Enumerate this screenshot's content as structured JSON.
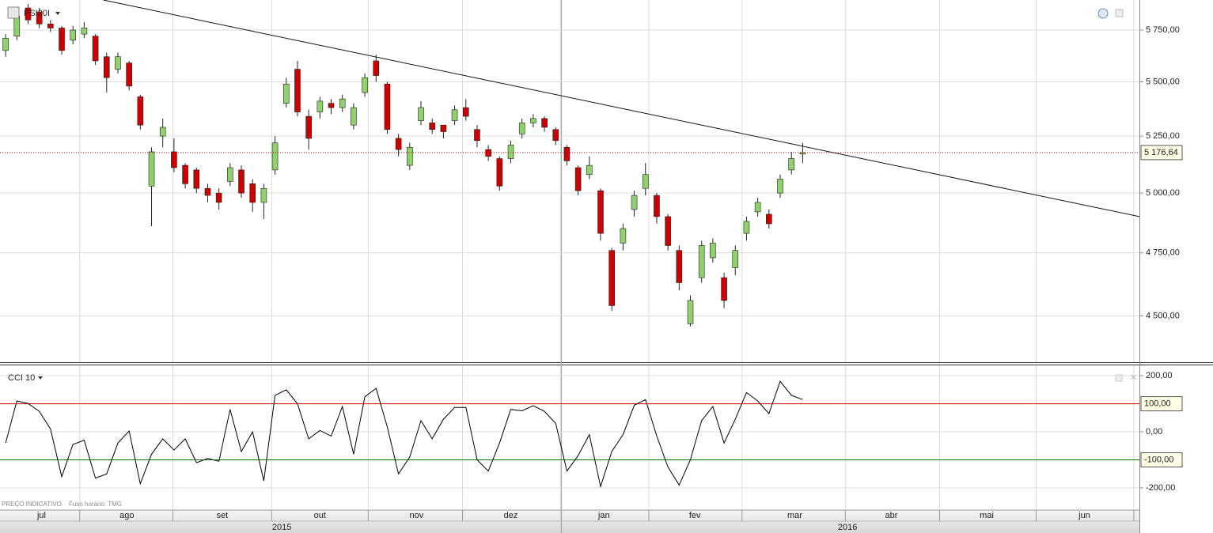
{
  "chart_data": [
    {
      "type": "candlestick",
      "title": "PSI20I",
      "categories": [
        null,
        null,
        null,
        null,
        null,
        null,
        null,
        null,
        null,
        null,
        null,
        null,
        null,
        null,
        null,
        null,
        null,
        null,
        null,
        null,
        null,
        null,
        null,
        null,
        null,
        null,
        null,
        null,
        null,
        null,
        null,
        null,
        null,
        null,
        null,
        null,
        null,
        null,
        null,
        null,
        null,
        null,
        null,
        null,
        null,
        null,
        null,
        null,
        null,
        null,
        null,
        null,
        null,
        null,
        null,
        null,
        null,
        null,
        null,
        null,
        null,
        null,
        null,
        null,
        null,
        null,
        null,
        null,
        null,
        null,
        null,
        null
      ],
      "open": [
        5650,
        5720,
        5860,
        5840,
        5780,
        5760,
        5700,
        5730,
        5720,
        5620,
        5560,
        5590,
        5430,
        5030,
        5250,
        5180,
        5120,
        5100,
        5020,
        5000,
        5050,
        5100,
        5040,
        4960,
        5100,
        5400,
        5560,
        5340,
        5360,
        5400,
        5380,
        5300,
        5450,
        5600,
        5490,
        5240,
        5120,
        5320,
        5310,
        5300,
        5320,
        5380,
        5280,
        5190,
        5150,
        5150,
        5260,
        5310,
        5330,
        5280,
        5200,
        5110,
        5080,
        5010,
        4760,
        4790,
        4930,
        5020,
        4990,
        4900,
        4760,
        4470,
        4650,
        4730,
        4650,
        4690,
        4830,
        4920,
        4910,
        5000,
        5100,
        5170
      ],
      "high": [
        5730,
        5850,
        5880,
        5860,
        5800,
        5770,
        5770,
        5790,
        5730,
        5640,
        5640,
        5600,
        5440,
        5200,
        5330,
        5240,
        5130,
        5110,
        5040,
        5020,
        5130,
        5120,
        5060,
        5040,
        5250,
        5520,
        5600,
        5370,
        5430,
        5420,
        5440,
        5400,
        5540,
        5630,
        5500,
        5260,
        5220,
        5410,
        5330,
        5300,
        5390,
        5420,
        5300,
        5210,
        5160,
        5230,
        5330,
        5350,
        5340,
        5290,
        5210,
        5120,
        5160,
        5020,
        4770,
        4870,
        5010,
        5130,
        5000,
        4910,
        4780,
        4580,
        4800,
        4810,
        4670,
        4780,
        4900,
        4980,
        4930,
        5080,
        5180,
        5220
      ],
      "low": [
        5620,
        5700,
        5780,
        5760,
        5740,
        5630,
        5680,
        5710,
        5580,
        5450,
        5540,
        5460,
        5280,
        4860,
        5200,
        5090,
        5020,
        5000,
        4960,
        4930,
        5030,
        4980,
        4920,
        4890,
        5080,
        5380,
        5340,
        5190,
        5330,
        5350,
        5360,
        5280,
        5430,
        5500,
        5260,
        5160,
        5100,
        5300,
        5260,
        5240,
        5300,
        5320,
        5200,
        5140,
        5010,
        5130,
        5240,
        5290,
        5270,
        5210,
        5120,
        4990,
        5060,
        4800,
        4520,
        4760,
        4900,
        4990,
        4870,
        4760,
        4600,
        4460,
        4630,
        4710,
        4530,
        4660,
        4800,
        4900,
        4850,
        4980,
        5080,
        5130
      ],
      "close": [
        5710,
        5820,
        5800,
        5780,
        5760,
        5650,
        5750,
        5760,
        5600,
        5520,
        5620,
        5480,
        5300,
        5180,
        5290,
        5110,
        5040,
        5020,
        4990,
        4960,
        5110,
        5000,
        4960,
        5020,
        5220,
        5490,
        5360,
        5240,
        5410,
        5380,
        5420,
        5380,
        5520,
        5530,
        5280,
        5190,
        5200,
        5380,
        5280,
        5270,
        5370,
        5340,
        5230,
        5160,
        5030,
        5210,
        5310,
        5330,
        5290,
        5230,
        5140,
        5010,
        5120,
        4830,
        4540,
        4850,
        4990,
        5080,
        4900,
        4780,
        4630,
        4560,
        4780,
        4790,
        4560,
        4760,
        4880,
        4960,
        4870,
        5060,
        5150,
        5176.64
      ],
      "up_color": "#8fd16c",
      "down_color": "#cc0000",
      "log_scale": true,
      "ylim": [
        4325,
        5900
      ],
      "yticks": [
        {
          "value": 5750,
          "label": "5 750,00"
        },
        {
          "value": 5500,
          "label": "5 500,00"
        },
        {
          "value": 5250,
          "label": "5 250,00"
        },
        {
          "value": 5000,
          "label": "5 000,00"
        },
        {
          "value": 4750,
          "label": "4 750,00"
        },
        {
          "value": 4500,
          "label": "4 500,00"
        }
      ],
      "xlim": [
        -0.5,
        101
      ],
      "xticks": [
        {
          "value": 3.2,
          "label": "jul"
        },
        {
          "value": 10.8,
          "label": "ago"
        },
        {
          "value": 19.3,
          "label": "set"
        },
        {
          "value": 28,
          "label": "out"
        },
        {
          "value": 36.6,
          "label": "nov"
        },
        {
          "value": 45,
          "label": "dez"
        },
        {
          "value": 53.3,
          "label": "jan"
        },
        {
          "value": 61.4,
          "label": "fev"
        },
        {
          "value": 70.3,
          "label": "mar"
        },
        {
          "value": 78.9,
          "label": "abr"
        },
        {
          "value": 87.4,
          "label": "mai"
        },
        {
          "value": 96.1,
          "label": "jun"
        }
      ],
      "xgrid": [
        6.6,
        14.9,
        23.7,
        32.3,
        40.7,
        49.5,
        57.3,
        65.6,
        74.8,
        83.2,
        91.8,
        100.5
      ],
      "year_ticks": [
        {
          "value": 24.6,
          "label": "2015"
        },
        {
          "value": 75.0,
          "label": "2016"
        }
      ],
      "year_boundary": 49.5,
      "trend_line": [
        [
          8.7,
          5900
        ],
        [
          101,
          4900
        ]
      ],
      "last_price": {
        "value": 5176.64,
        "label": "5 176,64",
        "color": "#cc0000"
      },
      "grid": true
    },
    {
      "type": "line",
      "series": [
        {
          "name": "CCI 10",
          "color": "#000000",
          "values": [
            -40,
            110,
            101,
            73,
            10,
            -160,
            -45,
            -30,
            -165,
            -150,
            -40,
            3,
            -185,
            -80,
            -25,
            -65,
            -25,
            -110,
            -95,
            -105,
            80,
            -70,
            0,
            -175,
            130,
            150,
            100,
            -25,
            5,
            -15,
            90,
            -80,
            125,
            155,
            17,
            -150,
            -90,
            40,
            -25,
            45,
            87,
            87,
            -100,
            -140,
            -40,
            80,
            75,
            93,
            73,
            30,
            -140,
            -85,
            -10,
            -195,
            -70,
            -10,
            95,
            115,
            -15,
            -125,
            -190,
            -100,
            40,
            90,
            -40,
            45,
            140,
            110,
            65,
            180,
            130,
            115
          ]
        }
      ],
      "ylim": [
        -279,
        237
      ],
      "yticks": [
        {
          "value": 200,
          "label": "200,00"
        },
        {
          "value": 0,
          "label": "0,00"
        },
        {
          "value": -200,
          "label": "-200,00"
        }
      ],
      "levels": [
        {
          "value": 100,
          "label": "100,00",
          "color": "#cc0000"
        },
        {
          "value": -100,
          "label": "-100,00",
          "color": "#008000"
        }
      ],
      "footnotes": [
        "PREÇO INDICATIVO",
        "Fuso horário: TMG"
      ],
      "grid": true
    }
  ]
}
